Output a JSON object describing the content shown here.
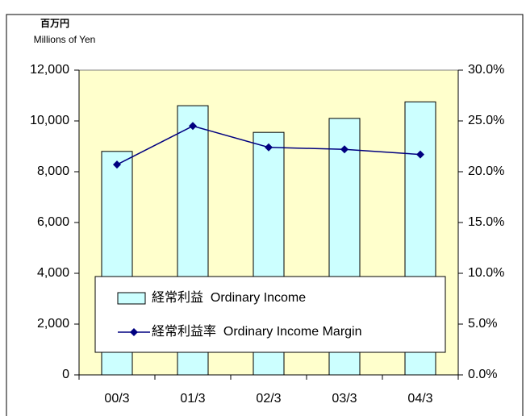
{
  "chart_data": {
    "type": "bar",
    "y_unit_label": "百万円",
    "y_axis_label": "Millions of Yen",
    "categories": [
      "00/3",
      "01/3",
      "02/3",
      "03/3",
      "04/3"
    ],
    "series": [
      {
        "name": "経常利益  Ordinary Income",
        "type": "bar",
        "color": "#ccffff",
        "values": [
          8800,
          10600,
          9550,
          10100,
          10750
        ]
      },
      {
        "name": "経常利益率  Ordinary Income Margin",
        "type": "line",
        "axis": "y2",
        "color": "#000080",
        "values": [
          20.7,
          24.5,
          22.4,
          22.2,
          21.7
        ]
      }
    ],
    "ylim": [
      0,
      12000
    ],
    "yticks": [
      0,
      {
        "value": 2000,
        "label": "2,000"
      },
      {
        "value": 4000,
        "label": "4,000"
      },
      {
        "value": 6000,
        "label": "6,000"
      },
      {
        "value": 8000,
        "label": "8,000"
      },
      {
        "value": 10000,
        "label": "10,000"
      },
      {
        "value": 12000,
        "label": "12,000"
      }
    ],
    "y2lim": [
      0,
      30
    ],
    "y2ticks": [
      {
        "value": 0,
        "label": "0.0%"
      },
      {
        "value": 5,
        "label": "5.0%"
      },
      {
        "value": 10,
        "label": "10.0%"
      },
      {
        "value": 15,
        "label": "15.0%"
      },
      {
        "value": 20,
        "label": "20.0%"
      },
      {
        "value": 25,
        "label": "25.0%"
      },
      {
        "value": 30,
        "label": "30.0%"
      }
    ],
    "plot_background": "#ffffcc",
    "legend": "bottom"
  }
}
